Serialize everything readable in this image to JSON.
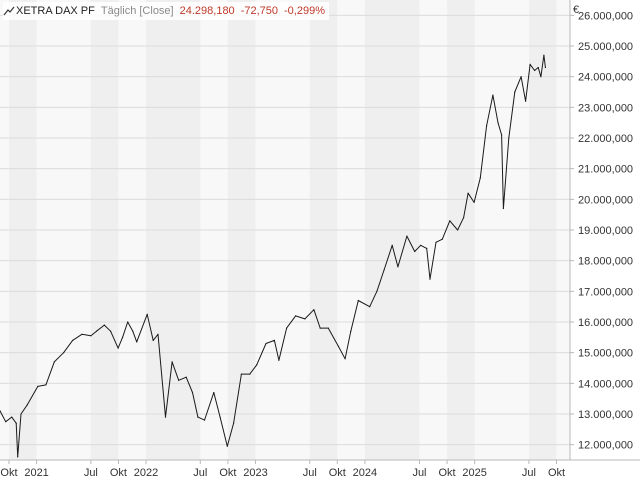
{
  "header": {
    "instrument": "XETRA DAX PF",
    "mode": "Täglich [Close]",
    "last": "24.298,180",
    "change": "-72,750",
    "change_pct": "-0,299%"
  },
  "colors": {
    "negative": "#c0392b",
    "line": "#1a1a1a",
    "band_dark": "#efefef",
    "band_light": "#f8f8f8",
    "grid": "#dcdcdc",
    "axis": "#b9b9b9",
    "label": "#333333"
  },
  "chart_data": {
    "type": "line",
    "title": "",
    "currency_label": "€",
    "ylim": [
      11500000,
      26500000
    ],
    "xlim": [
      "2020-09-01",
      "2025-11-15"
    ],
    "grid": "horizontal",
    "y_ticks": [
      {
        "value": 12000000,
        "label": "12.000,000"
      },
      {
        "value": 13000000,
        "label": "13.000,000"
      },
      {
        "value": 14000000,
        "label": "14.000,000"
      },
      {
        "value": 15000000,
        "label": "15.000,000"
      },
      {
        "value": 16000000,
        "label": "16.000,000"
      },
      {
        "value": 17000000,
        "label": "17.000,000"
      },
      {
        "value": 18000000,
        "label": "18.000,000"
      },
      {
        "value": 19000000,
        "label": "19.000,000"
      },
      {
        "value": 20000000,
        "label": "20.000,000"
      },
      {
        "value": 21000000,
        "label": "21.000,000"
      },
      {
        "value": 22000000,
        "label": "22.000,000"
      },
      {
        "value": 23000000,
        "label": "23.000,000"
      },
      {
        "value": 24000000,
        "label": "24.000,000"
      },
      {
        "value": 25000000,
        "label": "25.000,000"
      },
      {
        "value": 26000000,
        "label": "26.000,000"
      }
    ],
    "x_ticks": [
      {
        "date": "2020-10-01",
        "label": "Okt"
      },
      {
        "date": "2021-01-01",
        "label": "2021"
      },
      {
        "date": "2021-07-01",
        "label": "Jul"
      },
      {
        "date": "2021-10-01",
        "label": "Okt"
      },
      {
        "date": "2022-01-01",
        "label": "2022"
      },
      {
        "date": "2022-07-01",
        "label": "Jul"
      },
      {
        "date": "2022-10-01",
        "label": "Okt"
      },
      {
        "date": "2023-01-01",
        "label": "2023"
      },
      {
        "date": "2023-07-01",
        "label": "Jul"
      },
      {
        "date": "2023-10-01",
        "label": "Okt"
      },
      {
        "date": "2024-01-01",
        "label": "2024"
      },
      {
        "date": "2024-07-01",
        "label": "Jul"
      },
      {
        "date": "2024-10-01",
        "label": "Okt"
      },
      {
        "date": "2025-01-01",
        "label": "2025"
      },
      {
        "date": "2025-07-01",
        "label": "Jul"
      },
      {
        "date": "2025-10-01",
        "label": "Okt"
      }
    ],
    "series": [
      {
        "x": [
          "2020-09-01",
          "2020-09-20",
          "2020-10-10",
          "2020-10-25",
          "2020-10-30",
          "2020-11-10",
          "2020-12-01",
          "2021-01-05",
          "2021-02-01",
          "2021-03-01",
          "2021-04-01",
          "2021-05-01",
          "2021-06-01",
          "2021-07-01",
          "2021-07-20",
          "2021-08-15",
          "2021-09-05",
          "2021-09-30",
          "2021-10-15",
          "2021-11-01",
          "2021-11-18",
          "2021-12-01",
          "2022-01-05",
          "2022-01-25",
          "2022-02-10",
          "2022-03-07",
          "2022-03-29",
          "2022-04-20",
          "2022-05-15",
          "2022-06-05",
          "2022-06-23",
          "2022-07-15",
          "2022-08-15",
          "2022-09-05",
          "2022-09-29",
          "2022-10-20",
          "2022-11-15",
          "2022-12-13",
          "2023-01-05",
          "2023-02-05",
          "2023-03-05",
          "2023-03-20",
          "2023-04-15",
          "2023-05-15",
          "2023-06-15",
          "2023-07-15",
          "2023-08-05",
          "2023-09-01",
          "2023-10-05",
          "2023-10-27",
          "2023-11-15",
          "2023-12-10",
          "2024-01-17",
          "2024-02-10",
          "2024-03-05",
          "2024-04-01",
          "2024-04-20",
          "2024-05-20",
          "2024-06-15",
          "2024-07-05",
          "2024-07-25",
          "2024-08-05",
          "2024-08-25",
          "2024-09-15",
          "2024-10-10",
          "2024-11-05",
          "2024-11-25",
          "2024-12-10",
          "2024-12-30",
          "2025-01-20",
          "2025-02-10",
          "2025-03-03",
          "2025-03-20",
          "2025-04-01",
          "2025-04-07",
          "2025-04-25",
          "2025-05-15",
          "2025-06-05",
          "2025-06-20",
          "2025-07-05",
          "2025-07-20",
          "2025-08-01",
          "2025-08-10",
          "2025-08-20",
          "2025-08-25"
        ],
        "values": [
          13100000,
          12750000,
          12900000,
          12700000,
          11600000,
          13000000,
          13300000,
          13900000,
          13950000,
          14700000,
          15000000,
          15400000,
          15600000,
          15550000,
          15700000,
          15900000,
          15700000,
          15150000,
          15500000,
          16000000,
          15700000,
          15350000,
          16250000,
          15400000,
          15600000,
          12900000,
          14700000,
          14100000,
          14200000,
          13700000,
          12900000,
          12800000,
          13700000,
          12900000,
          11950000,
          12700000,
          14300000,
          14300000,
          14600000,
          15300000,
          15400000,
          14750000,
          15800000,
          16200000,
          16100000,
          16400000,
          15800000,
          15800000,
          15200000,
          14800000,
          15700000,
          16700000,
          16500000,
          17000000,
          17700000,
          18500000,
          17800000,
          18800000,
          18300000,
          18500000,
          18400000,
          17400000,
          18600000,
          18700000,
          19300000,
          19000000,
          19400000,
          20200000,
          19900000,
          20700000,
          22400000,
          23400000,
          22500000,
          22100000,
          19700000,
          22000000,
          23500000,
          24000000,
          23200000,
          24400000,
          24200000,
          24300000,
          24000000,
          24700000,
          24300000
        ]
      }
    ]
  }
}
